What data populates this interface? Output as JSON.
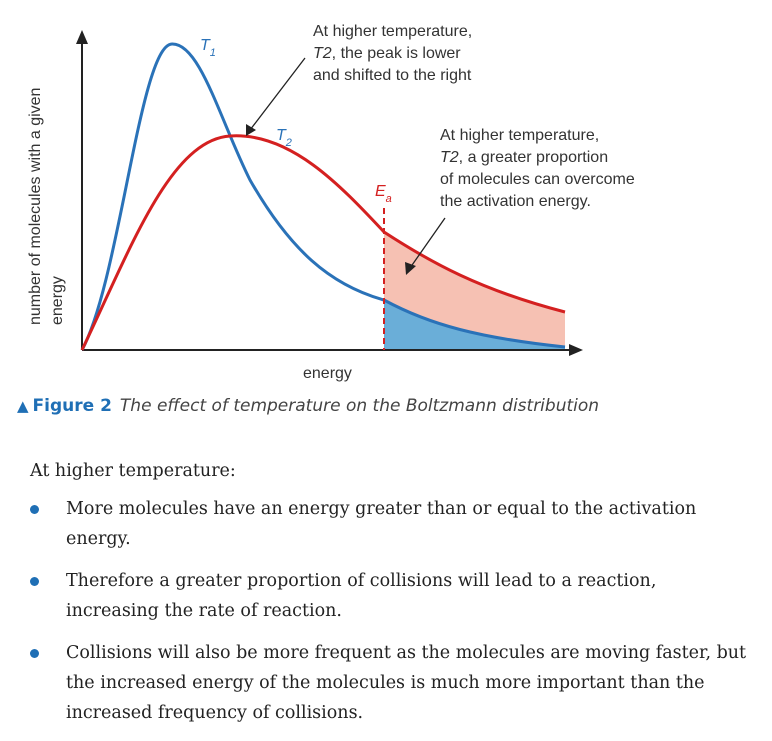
{
  "figure": {
    "x_axis_label": "energy",
    "y_axis_label_line1": "number of molecules with a given",
    "y_axis_label_line2": "energy",
    "curve_t1_label": "T1",
    "curve_t2_label": "T2",
    "activation_energy_label": "Ea",
    "annotation_peak": {
      "line1": "At higher temperature,",
      "line2_var": "T2",
      "line2_rest": ", the peak is lower",
      "line3": "and shifted to the right"
    },
    "annotation_proportion": {
      "line1": "At higher temperature,",
      "line2_var": "T2",
      "line2_rest": ", a greater proportion",
      "line3": "of molecules can overcome",
      "line4": "the activation energy."
    },
    "colors": {
      "t1_curve": "#2a72b8",
      "t2_curve": "#d42020",
      "t1_area": "#6aaed8",
      "t2_area": "#f6c1b3",
      "accent": "#1f6fb5"
    }
  },
  "caption": {
    "number": "Figure 2",
    "text": "The effect of temperature on the Boltzmann distribution"
  },
  "body": {
    "intro": "At higher temperature:",
    "bullets": [
      "More molecules have an energy greater than or equal to the activation energy.",
      "Therefore a greater proportion of collisions will lead to a reaction, increasing the rate of reaction.",
      "Collisions will also be more frequent as the molecules are moving faster, but the increased energy of the molecules is much more important than the increased frequency of collisions."
    ]
  }
}
